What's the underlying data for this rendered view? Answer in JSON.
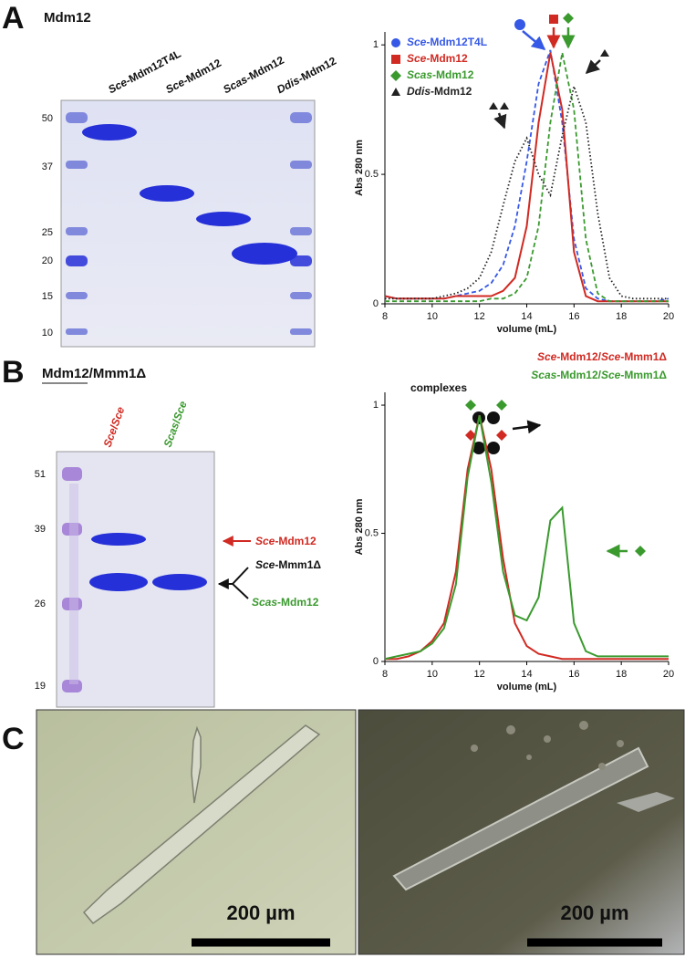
{
  "panel_labels": [
    "A",
    "B",
    "C"
  ],
  "panel_a": {
    "title": "Mdm12",
    "gel": {
      "lanes": [
        "Sce-Mdm12T4L",
        "Sce-Mdm12",
        "Scas-Mdm12",
        "Ddis-Mdm12"
      ],
      "markers": [
        50,
        37,
        25,
        20,
        15,
        10
      ]
    }
  },
  "panel_b": {
    "title": "Mdm12/Mmm1Δ",
    "gel": {
      "lanes": [
        "Sce/Sce",
        "Scas/Sce"
      ],
      "markers": [
        51,
        39,
        26,
        19
      ],
      "bands": [
        "Sce-Mdm12",
        "Sce-Mmm1Δ",
        "Scas-Mdm12"
      ]
    }
  },
  "panel_c": {
    "scale_bars": [
      "200 µm",
      "200 µm"
    ]
  },
  "chart_data": [
    {
      "type": "line",
      "ylabel": "Abs 280 nm",
      "xlabel": "volume (mL)",
      "legend": "upper left",
      "x": [
        8,
        8.5,
        9,
        9.5,
        10,
        10.5,
        11,
        11.5,
        12,
        12.5,
        13,
        13.5,
        14,
        14.5,
        15,
        15.5,
        16,
        16.5,
        17,
        17.5,
        18,
        18.5,
        19,
        19.5,
        20
      ],
      "xlim": [
        8,
        20
      ],
      "xticks": [
        8,
        10,
        12,
        14,
        16,
        18,
        20
      ],
      "ylim": [
        0,
        1.05
      ],
      "yticks": [
        0,
        0.5,
        1
      ],
      "series": [
        {
          "name": "Sce-Mdm12T4L",
          "color": "#3558e6",
          "line_style": "dashed",
          "marker": "circle",
          "values": [
            0.03,
            0.02,
            0.02,
            0.02,
            0.02,
            0.02,
            0.03,
            0.04,
            0.05,
            0.08,
            0.15,
            0.3,
            0.55,
            0.85,
            0.98,
            0.7,
            0.25,
            0.06,
            0.02,
            0.01,
            0.01,
            0.01,
            0.01,
            0.01,
            0.02
          ]
        },
        {
          "name": "Sce-Mdm12",
          "color": "#d02a22",
          "line_style": "solid",
          "marker": "square",
          "values": [
            0.03,
            0.02,
            0.02,
            0.02,
            0.02,
            0.02,
            0.03,
            0.03,
            0.03,
            0.03,
            0.05,
            0.1,
            0.3,
            0.7,
            0.97,
            0.75,
            0.2,
            0.03,
            0.01,
            0.01,
            0.01,
            0.01,
            0.01,
            0.01,
            0.01
          ]
        },
        {
          "name": "Scas-Mdm12",
          "color": "#3a9a2e",
          "line_style": "dashed",
          "marker": "diamond",
          "values": [
            0.01,
            0.01,
            0.01,
            0.01,
            0.01,
            0.01,
            0.01,
            0.01,
            0.01,
            0.02,
            0.02,
            0.04,
            0.1,
            0.3,
            0.7,
            0.97,
            0.75,
            0.25,
            0.04,
            0.01,
            0.01,
            0.01,
            0.01,
            0.01,
            0.01
          ]
        },
        {
          "name": "Ddis-Mdm12",
          "color": "#222222",
          "line_style": "dotted",
          "marker": "triangle",
          "values": [
            0.02,
            0.02,
            0.02,
            0.02,
            0.02,
            0.03,
            0.04,
            0.06,
            0.1,
            0.2,
            0.38,
            0.55,
            0.64,
            0.5,
            0.42,
            0.65,
            0.84,
            0.7,
            0.35,
            0.1,
            0.03,
            0.02,
            0.02,
            0.02,
            0.02
          ]
        }
      ]
    },
    {
      "type": "line",
      "ylabel": "Abs 280 nm",
      "xlabel": "volume (mL)",
      "legend": "upper right",
      "annotation": "complexes",
      "x": [
        8,
        8.5,
        9,
        9.5,
        10,
        10.5,
        11,
        11.5,
        12,
        12.5,
        13,
        13.5,
        14,
        14.5,
        15,
        15.5,
        16,
        16.5,
        17,
        17.5,
        18,
        18.5,
        19,
        19.5,
        20
      ],
      "xlim": [
        8,
        20
      ],
      "xticks": [
        8,
        10,
        12,
        14,
        16,
        18,
        20
      ],
      "ylim": [
        0,
        1.05
      ],
      "yticks": [
        0,
        0.5,
        1
      ],
      "series": [
        {
          "name": "Sce-Mdm12/Sce-Mmm1Δ",
          "color": "#d02a22",
          "line_style": "solid",
          "values": [
            0.01,
            0.01,
            0.02,
            0.04,
            0.08,
            0.15,
            0.35,
            0.75,
            0.96,
            0.75,
            0.4,
            0.15,
            0.06,
            0.03,
            0.02,
            0.01,
            0.01,
            0.01,
            0.01,
            0.01,
            0.01,
            0.01,
            0.01,
            0.01,
            0.01
          ]
        },
        {
          "name": "Scas-Mdm12/Sce-Mmm1Δ",
          "color": "#3a9a2e",
          "line_style": "solid",
          "values": [
            0.01,
            0.02,
            0.03,
            0.04,
            0.07,
            0.13,
            0.3,
            0.72,
            0.96,
            0.7,
            0.35,
            0.18,
            0.16,
            0.25,
            0.55,
            0.6,
            0.15,
            0.04,
            0.02,
            0.02,
            0.02,
            0.02,
            0.02,
            0.02,
            0.02
          ]
        }
      ]
    }
  ]
}
